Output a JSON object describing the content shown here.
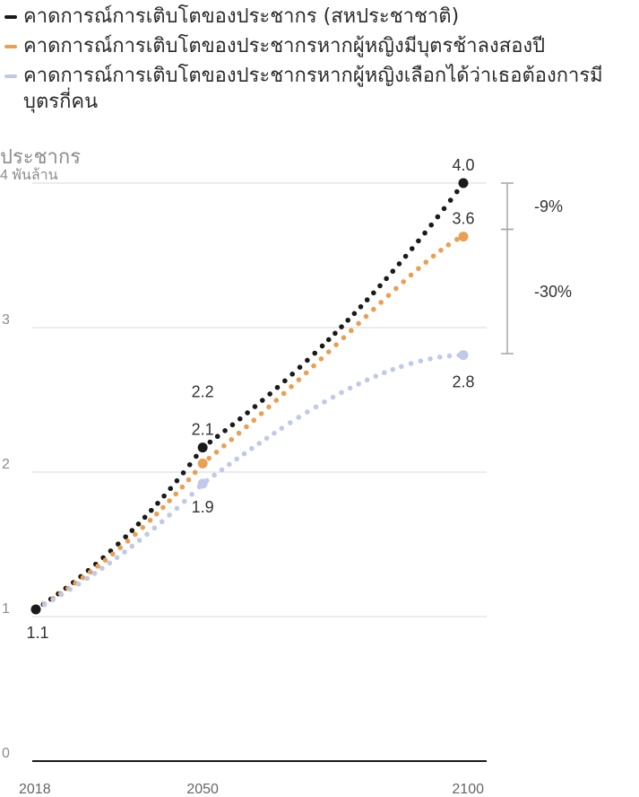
{
  "legend": [
    {
      "label": "คาดการณ์การเติบโตของประชากร (สหประชาชาติ)",
      "color": "#1a1a1a"
    },
    {
      "label": "คาดการณ์การเติบโตของประชากรหากผู้หญิงมีบุตรช้าลงสองปี",
      "color": "#e8a153"
    },
    {
      "label": "คาดการณ์การเติบโตของประชากรหากผู้หญิงเลือกได้ว่าเธอต้องการมีบุตรกี่คน",
      "color": "#c0c9e8"
    }
  ],
  "chart_data": {
    "type": "line",
    "ylabel": "ประชากร",
    "yunit": "พันล้าน",
    "x_ticks": [
      "2018",
      "2050",
      "2100"
    ],
    "y_ticks": [
      "0",
      "1",
      "2",
      "3",
      "4"
    ],
    "xlim": [
      2018,
      2100
    ],
    "ylim": [
      0,
      4
    ],
    "grid": true,
    "series": [
      {
        "name": "คาดการณ์การเติบโตของประชากร (สหประชาชาติ)",
        "color": "#1a1a1a",
        "start": 1.05,
        "mid": 2.17,
        "end": 4.0,
        "curve": 1.0
      },
      {
        "name": "คาดการณ์การเติบโตของประชากรหากผู้หญิงมีบุตรช้าลงสองปี",
        "color": "#e8a153",
        "start": 1.05,
        "mid": 2.06,
        "end": 3.63,
        "curve": 1.25
      },
      {
        "name": "คาดการณ์การเติบโตของประชากรหากผู้หญิงเลือกได้ว่าเธอต้องการมีบุตรกี่คน",
        "color": "#c0c9e8",
        "start": 1.05,
        "mid": 1.92,
        "end": 2.81,
        "curve": 1.8
      }
    ],
    "points": [
      {
        "x": 2018,
        "y": 1.05,
        "series": 0
      },
      {
        "x": 2050,
        "y": 2.17,
        "series": 0
      },
      {
        "x": 2050,
        "y": 2.06,
        "series": 1
      },
      {
        "x": 2050,
        "y": 1.92,
        "series": 2
      },
      {
        "x": 2100,
        "y": 4.0,
        "series": 0
      },
      {
        "x": 2100,
        "y": 3.63,
        "series": 1
      },
      {
        "x": 2100,
        "y": 2.81,
        "series": 2
      }
    ],
    "data_labels": [
      {
        "text": "1.1",
        "x": 2018,
        "y": 1.05,
        "pos": "below"
      },
      {
        "text": "2.2",
        "x": 2050,
        "y": 2.17,
        "pos": "above-high"
      },
      {
        "text": "2.1",
        "x": 2050,
        "y": 2.17,
        "pos": "above"
      },
      {
        "text": "1.9",
        "x": 2050,
        "y": 1.92,
        "pos": "below"
      },
      {
        "text": "4.0",
        "x": 2100,
        "y": 4.0,
        "pos": "above"
      },
      {
        "text": "3.6",
        "x": 2100,
        "y": 3.63,
        "pos": "above"
      },
      {
        "text": "2.8",
        "x": 2100,
        "y": 2.81,
        "pos": "below"
      }
    ],
    "annotations": [
      {
        "text": "-9%",
        "from": 4.0,
        "to": 3.68
      },
      {
        "text": "-30%",
        "from": 3.68,
        "to": 2.82
      }
    ]
  }
}
